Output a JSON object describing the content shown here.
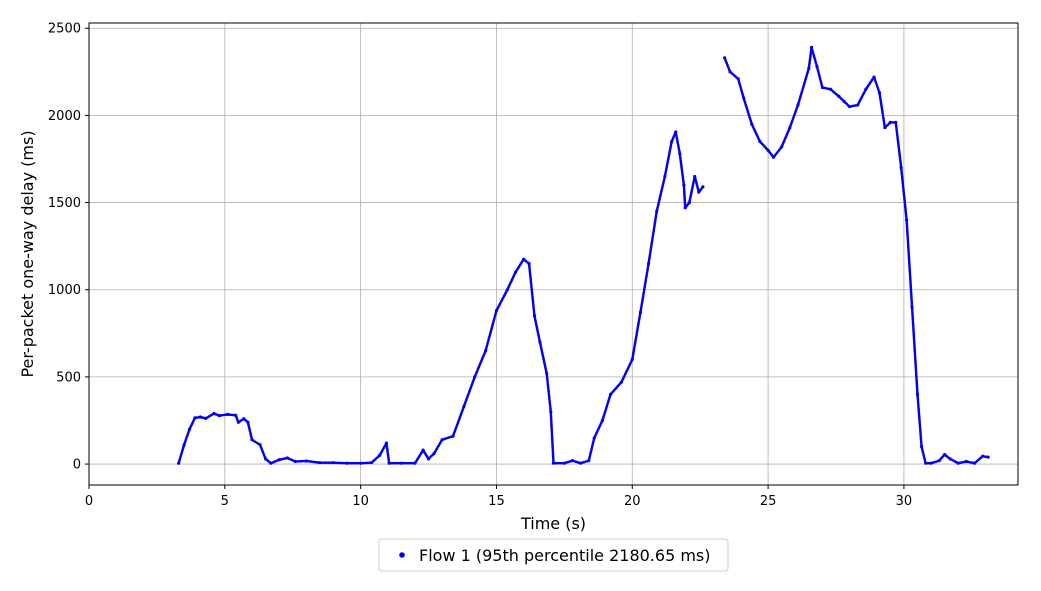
{
  "chart_data": {
    "type": "scatter",
    "xlabel": "Time (s)",
    "ylabel": "Per-packet one-way delay (ms)",
    "xlim": [
      0,
      34.2
    ],
    "ylim": [
      -120,
      2530
    ],
    "xticks": [
      0,
      5,
      10,
      15,
      20,
      25,
      30
    ],
    "yticks": [
      0,
      500,
      1000,
      1500,
      2000,
      2500
    ],
    "grid": true,
    "legend_position": "bottom-center",
    "series": [
      {
        "name": "Flow 1 (95th percentile 2180.65 ms)",
        "color": "#0000ee",
        "points": [
          [
            3.3,
            5
          ],
          [
            3.5,
            110
          ],
          [
            3.7,
            200
          ],
          [
            3.9,
            265
          ],
          [
            4.1,
            270
          ],
          [
            4.3,
            262
          ],
          [
            4.6,
            290
          ],
          [
            4.8,
            278
          ],
          [
            5.1,
            285
          ],
          [
            5.4,
            280
          ],
          [
            5.5,
            240
          ],
          [
            5.7,
            260
          ],
          [
            5.85,
            240
          ],
          [
            6.0,
            140
          ],
          [
            6.3,
            110
          ],
          [
            6.5,
            30
          ],
          [
            6.7,
            5
          ],
          [
            7.0,
            25
          ],
          [
            7.3,
            35
          ],
          [
            7.6,
            15
          ],
          [
            8.0,
            18
          ],
          [
            8.5,
            8
          ],
          [
            9.0,
            8
          ],
          [
            9.5,
            5
          ],
          [
            10.0,
            5
          ],
          [
            10.4,
            8
          ],
          [
            10.7,
            50
          ],
          [
            10.95,
            120
          ],
          [
            11.05,
            5
          ],
          [
            11.5,
            5
          ],
          [
            12.0,
            5
          ],
          [
            12.3,
            80
          ],
          [
            12.5,
            30
          ],
          [
            12.7,
            60
          ],
          [
            13.0,
            140
          ],
          [
            13.4,
            160
          ],
          [
            13.8,
            330
          ],
          [
            14.2,
            500
          ],
          [
            14.6,
            650
          ],
          [
            15.0,
            880
          ],
          [
            15.4,
            1000
          ],
          [
            15.7,
            1100
          ],
          [
            16.0,
            1175
          ],
          [
            16.2,
            1150
          ],
          [
            16.4,
            850
          ],
          [
            16.6,
            700
          ],
          [
            16.85,
            520
          ],
          [
            17.0,
            300
          ],
          [
            17.1,
            5
          ],
          [
            17.5,
            5
          ],
          [
            17.8,
            20
          ],
          [
            18.1,
            5
          ],
          [
            18.4,
            20
          ],
          [
            18.6,
            150
          ],
          [
            18.9,
            250
          ],
          [
            19.2,
            400
          ],
          [
            19.6,
            470
          ],
          [
            20.0,
            600
          ],
          [
            20.3,
            870
          ],
          [
            20.6,
            1150
          ],
          [
            20.9,
            1450
          ],
          [
            21.2,
            1650
          ],
          [
            21.45,
            1850
          ],
          [
            21.6,
            1905
          ],
          [
            21.75,
            1780
          ],
          [
            21.9,
            1600
          ],
          [
            21.95,
            1470
          ],
          [
            22.1,
            1500
          ],
          [
            22.3,
            1650
          ],
          [
            22.45,
            1560
          ],
          [
            22.6,
            1590
          ],
          [
            23.4,
            2330
          ],
          [
            23.6,
            2250
          ],
          [
            23.9,
            2210
          ],
          [
            24.1,
            2100
          ],
          [
            24.4,
            1950
          ],
          [
            24.7,
            1850
          ],
          [
            25.0,
            1800
          ],
          [
            25.2,
            1760
          ],
          [
            25.5,
            1820
          ],
          [
            25.8,
            1930
          ],
          [
            26.1,
            2060
          ],
          [
            26.5,
            2270
          ],
          [
            26.6,
            2390
          ],
          [
            26.8,
            2280
          ],
          [
            27.0,
            2160
          ],
          [
            27.3,
            2150
          ],
          [
            27.6,
            2110
          ],
          [
            27.8,
            2080
          ],
          [
            28.0,
            2050
          ],
          [
            28.3,
            2060
          ],
          [
            28.6,
            2150
          ],
          [
            28.9,
            2220
          ],
          [
            29.1,
            2130
          ],
          [
            29.3,
            1930
          ],
          [
            29.5,
            1960
          ],
          [
            29.7,
            1960
          ],
          [
            29.9,
            1700
          ],
          [
            30.1,
            1400
          ],
          [
            30.3,
            900
          ],
          [
            30.5,
            400
          ],
          [
            30.65,
            100
          ],
          [
            30.8,
            5
          ],
          [
            31.0,
            5
          ],
          [
            31.3,
            20
          ],
          [
            31.5,
            55
          ],
          [
            31.7,
            30
          ],
          [
            32.0,
            5
          ],
          [
            32.3,
            15
          ],
          [
            32.6,
            5
          ],
          [
            32.9,
            45
          ],
          [
            33.1,
            40
          ]
        ]
      }
    ]
  }
}
